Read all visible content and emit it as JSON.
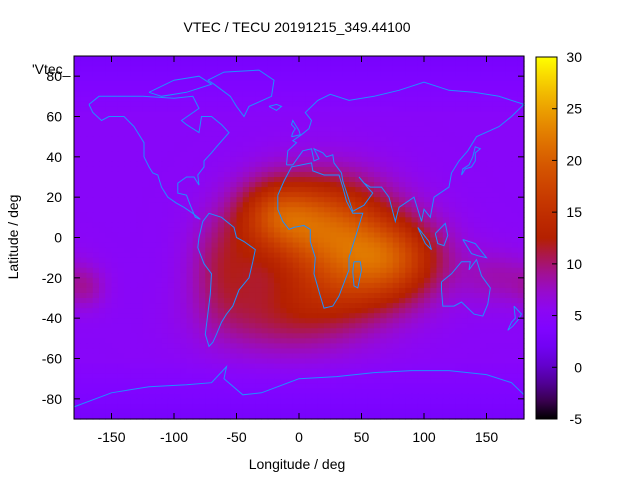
{
  "chart_data": {
    "type": "heatmap",
    "title": "VTEC / TECU 20191215_349.44100",
    "xlabel": "Longitude / deg",
    "ylabel": "Latitude / deg",
    "legend_label": "'Vtec_",
    "xlim": [
      -180,
      180
    ],
    "ylim": [
      -90,
      90
    ],
    "xticks": [
      "-150",
      "-100",
      "-50",
      "0",
      "50",
      "100",
      "150"
    ],
    "xtick_values": [
      -150,
      -100,
      -50,
      0,
      50,
      100,
      150
    ],
    "yticks": [
      "80",
      "60",
      "40",
      "20",
      "0",
      "-20",
      "-40",
      "-60",
      "-80"
    ],
    "ytick_values": [
      80,
      60,
      40,
      20,
      0,
      -20,
      -40,
      -60,
      -80
    ],
    "colorbar": {
      "range": [
        -5,
        30
      ],
      "ticks": [
        "30",
        "25",
        "20",
        "15",
        "10",
        "5",
        "0",
        "-5"
      ],
      "tick_values": [
        30,
        25,
        20,
        15,
        10,
        5,
        0,
        -5
      ]
    },
    "field": {
      "background_tecu": 5.0,
      "polar_tecu": 3.5,
      "blobs": [
        {
          "lon": 20,
          "lat": 5,
          "sx": 38,
          "sy": 18,
          "amp": 14
        },
        {
          "lon": 75,
          "lat": -10,
          "sx": 30,
          "sy": 14,
          "amp": 10
        },
        {
          "lon": -20,
          "lat": 12,
          "sx": 22,
          "sy": 12,
          "amp": 7
        },
        {
          "lon": -10,
          "lat": -40,
          "sx": 45,
          "sy": 14,
          "amp": 5
        },
        {
          "lon": 40,
          "lat": -25,
          "sx": 40,
          "sy": 14,
          "amp": 5
        },
        {
          "lon": -60,
          "lat": -15,
          "sx": 20,
          "sy": 18,
          "amp": 5
        },
        {
          "lon": -170,
          "lat": -25,
          "sx": 12,
          "sy": 8,
          "amp": 3
        },
        {
          "lon": 160,
          "lat": -20,
          "sx": 20,
          "sy": 10,
          "amp": 3
        }
      ]
    }
  },
  "colors": {
    "coastline": "#1e90ff",
    "frame": "#000000"
  }
}
